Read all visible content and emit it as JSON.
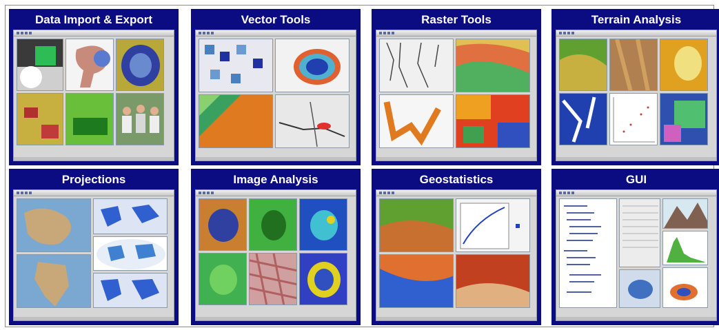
{
  "tiles": [
    {
      "title": "Data Import & Export"
    },
    {
      "title": "Vector Tools"
    },
    {
      "title": "Raster Tools"
    },
    {
      "title": "Terrain Analysis"
    },
    {
      "title": "Projections"
    },
    {
      "title": "Image Analysis"
    },
    {
      "title": "Geostatistics"
    },
    {
      "title": "GUI"
    }
  ],
  "colors": {
    "tile_background": "#0b0b82",
    "tile_title_text": "#ffffff",
    "window_background": "#d6d6d6"
  }
}
